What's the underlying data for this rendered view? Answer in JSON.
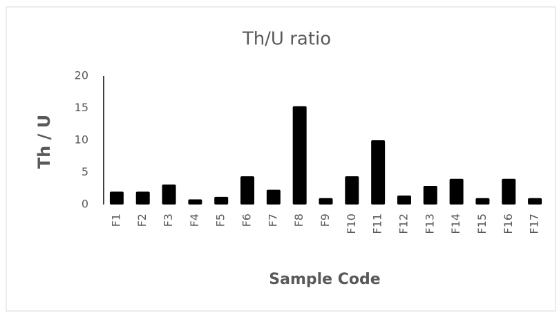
{
  "chart_data": {
    "type": "bar",
    "title": "Th/U ratio",
    "xlabel": "Sample Code",
    "ylabel": "Th / U",
    "categories": [
      "F1",
      "F2",
      "F3",
      "F4",
      "F5",
      "F6",
      "F7",
      "F8",
      "F9",
      "F10",
      "F11",
      "F12",
      "F13",
      "F14",
      "F15",
      "F16",
      "F17"
    ],
    "values": [
      2.0,
      2.0,
      3.1,
      0.8,
      1.2,
      4.4,
      2.3,
      15.3,
      1.0,
      4.4,
      10.0,
      1.4,
      2.9,
      4.0,
      1.0,
      4.0,
      1.0
    ],
    "color": "#000000",
    "ylim": [
      0,
      20
    ],
    "yticks": [
      0,
      5,
      10,
      15,
      20
    ],
    "grid": false
  }
}
